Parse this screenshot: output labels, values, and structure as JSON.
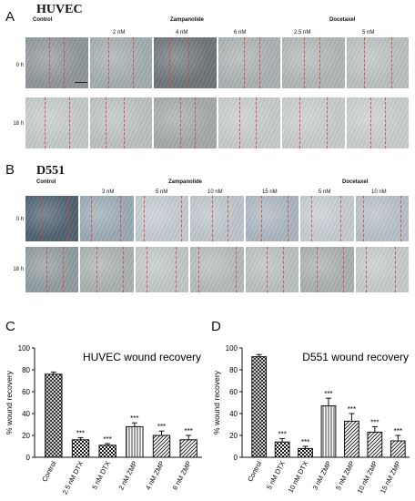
{
  "panels": {
    "A": {
      "letter": "A",
      "cell_line": "HUVEC",
      "headers": {
        "control": "Control",
        "zampanolide": "Zampanolide",
        "docetaxel": "Docetaxel"
      },
      "concentrations": [
        "2 nM",
        "4 nM",
        "6 nM",
        "2.5 nM",
        "5 nM"
      ],
      "rows": [
        "0 h",
        "18 h"
      ],
      "tones": [
        [
          "#8d969a",
          "#a2acae",
          "#6c7478",
          "#aab1b2",
          "#b0b6b6",
          "#b9bfbe"
        ],
        [
          "#c3c8c8",
          "#bcc1c0",
          "#a4a9a8",
          "#c6cac9",
          "#c7cbca",
          "#c8cccb"
        ]
      ]
    },
    "B": {
      "letter": "B",
      "cell_line": "D551",
      "headers": {
        "control": "Control",
        "zampanolide": "Zampanolide",
        "docetaxel": "Docetaxel"
      },
      "concentrations": [
        "3 nM",
        "5 nM",
        "10 nM",
        "15 nM",
        "5 nM",
        "10 nM"
      ],
      "rows": [
        "0 h",
        "18 h"
      ],
      "tones": [
        [
          "#4e6070",
          "#9aa9b5",
          "#c2cad0",
          "#bcc5cb",
          "#aab6c0",
          "#c4ccd1",
          "#b6bfc6"
        ],
        [
          "#8e9b9e",
          "#a8b2ae",
          "#c0c7c4",
          "#b3bbb8",
          "#b8c0bf",
          "#a7b0ae",
          "#c3cac8"
        ]
      ]
    }
  },
  "chart_data": [
    {
      "panel_letter": "C",
      "type": "bar",
      "title": "HUVEC wound recovery",
      "ylabel": "% wound recovery",
      "ylim": [
        0,
        100
      ],
      "yticks": [
        "0",
        "20",
        "40",
        "60",
        "80",
        "100"
      ],
      "categories": [
        "Control",
        "2.5 nM  DTX",
        "5 nM  DTX",
        "2 nM  ZMP",
        "4 nM  ZMP",
        "6 nM  ZMP"
      ],
      "values": [
        76,
        16,
        11,
        28,
        20,
        16
      ],
      "errors": [
        2,
        2,
        1.5,
        3.5,
        4,
        4
      ],
      "annotations": [
        "",
        "***",
        "***",
        "***",
        "***",
        "***"
      ],
      "patterns": [
        "cross",
        "check",
        "check",
        "vert",
        "diag",
        "diag"
      ]
    },
    {
      "panel_letter": "D",
      "type": "bar",
      "title": "D551 wound recovery",
      "ylabel": "% wound recovery",
      "ylim": [
        0,
        100
      ],
      "yticks": [
        "0",
        "20",
        "40",
        "60",
        "80",
        "100"
      ],
      "categories": [
        "Control",
        "5 nM  DTX",
        "10 nM  DTX",
        "3 nM  ZMP",
        "5 nM  ZMP",
        "10 nM  ZMP",
        "15 nM  ZMP"
      ],
      "values": [
        92,
        14,
        8,
        47,
        33,
        23,
        15
      ],
      "errors": [
        2,
        3,
        2,
        7,
        7,
        5,
        5
      ],
      "annotations": [
        "",
        "***",
        "***",
        "***",
        "***",
        "***",
        "***"
      ],
      "patterns": [
        "cross",
        "check",
        "check",
        "vert",
        "diag",
        "diag",
        "diag"
      ]
    }
  ]
}
